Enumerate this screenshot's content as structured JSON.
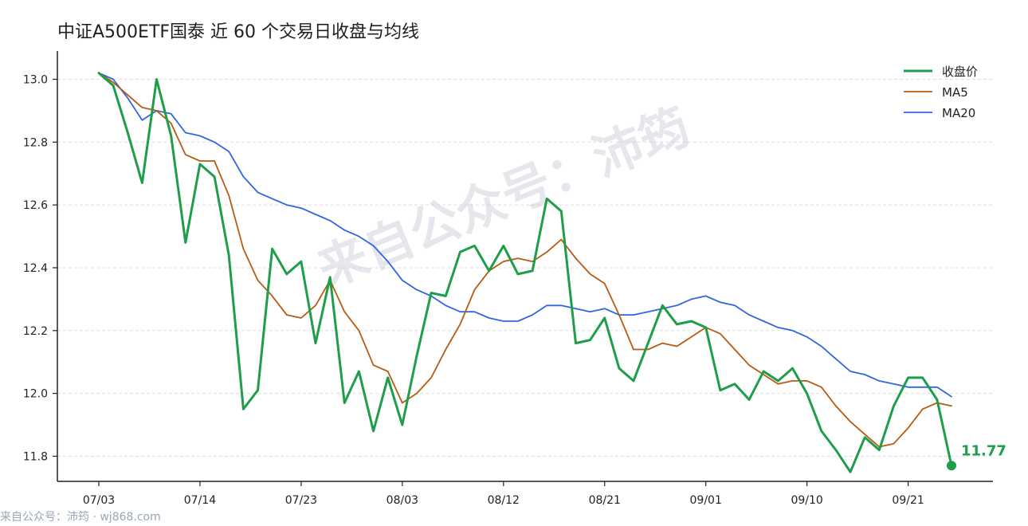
{
  "title": "中证A500ETF国泰 近 60 个交易日收盘与均线",
  "watermark": "来自公众号：沛筠",
  "footer": "来自公众号：沛筠 · wj868.com",
  "last_value_label": "11.77",
  "colors": {
    "close": "#1e9e4a",
    "ma5": "#b85a12",
    "ma20": "#2f66e0",
    "grid": "#dddddd",
    "axis": "#222222",
    "watermark": "#c7ccd6"
  },
  "chart_data": {
    "type": "line",
    "title": "中证A500ETF国泰 近 60 个交易日收盘与均线",
    "x_ticks": [
      "07/03",
      "07/14",
      "07/23",
      "08/03",
      "08/12",
      "08/21",
      "09/01",
      "09/10",
      "09/21"
    ],
    "x_tick_index": [
      0,
      7,
      14,
      21,
      28,
      35,
      42,
      49,
      56
    ],
    "ylim": [
      11.72,
      13.09
    ],
    "y_ticks": [
      "11.8",
      "12.0",
      "12.2",
      "12.4",
      "12.6",
      "12.8",
      "13.0"
    ],
    "y_tick_values": [
      11.8,
      12.0,
      12.2,
      12.4,
      12.6,
      12.8,
      13.0
    ],
    "grid": "horizontal dashed",
    "legend_position": "top-right",
    "series": [
      {
        "name": "收盘价",
        "values": [
          13.02,
          12.98,
          12.83,
          12.67,
          13.0,
          12.82,
          12.48,
          12.73,
          12.69,
          12.44,
          11.95,
          12.01,
          12.46,
          12.38,
          12.42,
          12.16,
          12.37,
          11.97,
          12.07,
          11.88,
          12.05,
          11.9,
          12.12,
          12.32,
          12.31,
          12.45,
          12.47,
          12.39,
          12.47,
          12.38,
          12.39,
          12.62,
          12.58,
          12.16,
          12.17,
          12.24,
          12.08,
          12.04,
          12.16,
          12.28,
          12.22,
          12.23,
          12.21,
          12.01,
          12.03,
          11.98,
          12.07,
          12.04,
          12.08,
          12.0,
          11.88,
          11.82,
          11.75,
          11.86,
          11.82,
          11.96,
          12.05,
          12.05,
          11.98,
          11.77
        ]
      },
      {
        "name": "MA5",
        "values": [
          13.02,
          12.99,
          12.95,
          12.91,
          12.9,
          12.86,
          12.76,
          12.74,
          12.74,
          12.63,
          12.46,
          12.36,
          12.31,
          12.25,
          12.24,
          12.28,
          12.36,
          12.26,
          12.2,
          12.09,
          12.07,
          11.97,
          12.0,
          12.05,
          12.14,
          12.22,
          12.33,
          12.39,
          12.42,
          12.43,
          12.42,
          12.45,
          12.49,
          12.43,
          12.38,
          12.35,
          12.25,
          12.14,
          12.14,
          12.16,
          12.15,
          12.18,
          12.21,
          12.19,
          12.14,
          12.09,
          12.06,
          12.03,
          12.04,
          12.04,
          12.02,
          11.96,
          11.91,
          11.87,
          11.83,
          11.84,
          11.89,
          11.95,
          11.97,
          11.96
        ]
      },
      {
        "name": "MA20",
        "values": [
          13.02,
          13.0,
          12.94,
          12.87,
          12.9,
          12.89,
          12.83,
          12.82,
          12.8,
          12.77,
          12.69,
          12.64,
          12.62,
          12.6,
          12.59,
          12.57,
          12.55,
          12.52,
          12.5,
          12.47,
          12.42,
          12.36,
          12.33,
          12.31,
          12.28,
          12.26,
          12.26,
          12.24,
          12.23,
          12.23,
          12.25,
          12.28,
          12.28,
          12.27,
          12.26,
          12.27,
          12.25,
          12.25,
          12.26,
          12.27,
          12.28,
          12.3,
          12.31,
          12.29,
          12.28,
          12.25,
          12.23,
          12.21,
          12.2,
          12.18,
          12.15,
          12.11,
          12.07,
          12.06,
          12.04,
          12.03,
          12.02,
          12.02,
          12.02,
          11.99
        ]
      }
    ]
  }
}
